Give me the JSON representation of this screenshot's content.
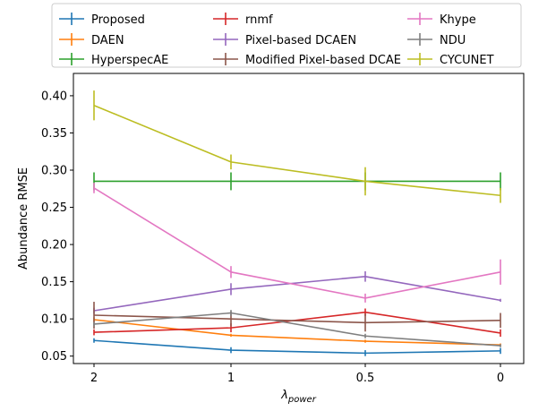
{
  "chart_data": {
    "type": "line",
    "xlabel_base": "λ",
    "xlabel_sub": "power",
    "ylabel": "Abundance RMSE",
    "categories": [
      "2",
      "1",
      "0.5",
      "0"
    ],
    "ylim": [
      0.04,
      0.43
    ],
    "yticks": [
      "0.05",
      "0.10",
      "0.15",
      "0.20",
      "0.25",
      "0.30",
      "0.35",
      "0.40"
    ],
    "grid": false,
    "legend_position": "top",
    "series": [
      {
        "name": "Proposed",
        "color": "#1f77b4",
        "values": [
          0.071,
          0.058,
          0.054,
          0.057
        ],
        "errors": [
          0.003,
          0.004,
          0.004,
          0.004
        ]
      },
      {
        "name": "DAEN",
        "color": "#ff7f0e",
        "values": [
          0.099,
          0.078,
          0.07,
          0.065
        ],
        "errors": [
          0.003,
          0.002,
          0.002,
          0.002
        ]
      },
      {
        "name": "HyperspecAE",
        "color": "#2ca02c",
        "values": [
          0.285,
          0.285,
          0.285,
          0.285
        ],
        "errors": [
          0.012,
          0.012,
          0.012,
          0.012
        ]
      },
      {
        "name": "rnmf",
        "color": "#d62728",
        "values": [
          0.082,
          0.088,
          0.109,
          0.081
        ],
        "errors": [
          0.004,
          0.006,
          0.005,
          0.005
        ]
      },
      {
        "name": "Pixel-based DCAEN",
        "color": "#9467bd",
        "values": [
          0.111,
          0.14,
          0.157,
          0.125
        ],
        "errors": [
          0.004,
          0.008,
          0.007,
          0.002
        ]
      },
      {
        "name": "Modified Pixel-based DCAE",
        "color": "#8c564b",
        "values": [
          0.105,
          0.1,
          0.095,
          0.098
        ],
        "errors": [
          0.018,
          0.01,
          0.012,
          0.01
        ]
      },
      {
        "name": "Khype",
        "color": "#e377c2",
        "values": [
          0.276,
          0.163,
          0.128,
          0.163
        ],
        "errors": [
          0.007,
          0.008,
          0.006,
          0.017
        ]
      },
      {
        "name": "NDU",
        "color": "#7f7f7f",
        "values": [
          0.093,
          0.108,
          0.077,
          0.064
        ],
        "errors": [
          0.003,
          0.004,
          0.003,
          0.002
        ]
      },
      {
        "name": "CYCUNET",
        "color": "#bcbd22",
        "values": [
          0.387,
          0.311,
          0.285,
          0.266
        ],
        "errors": [
          0.02,
          0.01,
          0.019,
          0.01
        ]
      }
    ]
  }
}
